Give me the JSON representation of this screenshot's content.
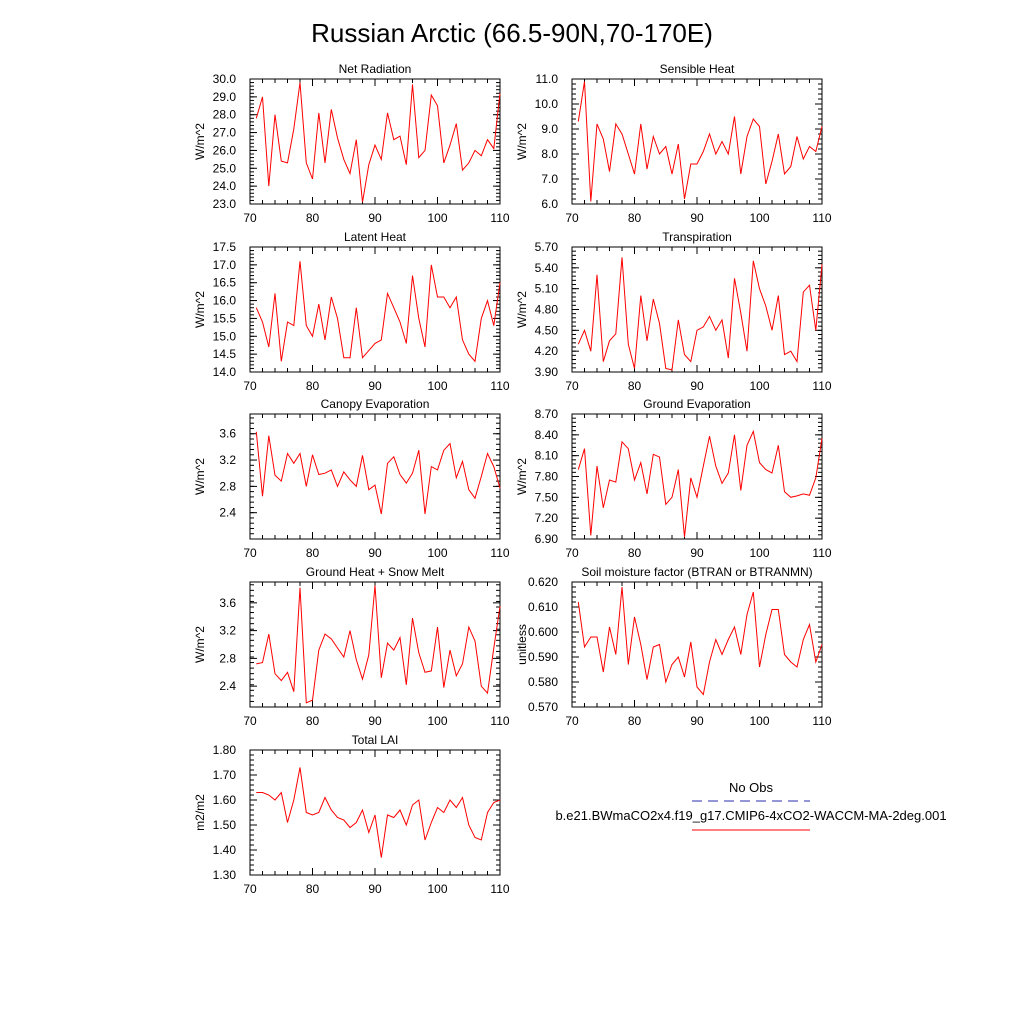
{
  "title": "Russian Arctic (66.5-90N,70-170E)",
  "colors": {
    "series": "#ff0000",
    "obs": "#2b2bb0",
    "axis": "#000000"
  },
  "legend": {
    "obs_label": "No Obs",
    "model_label": "b.e21.BWmaCO2x4.f19_g17.CMIP6-4xCO2-WACCM-MA-2deg.001"
  },
  "chart_data": [
    {
      "type": "line",
      "title": "Net Radiation",
      "ylabel": "W/m^2",
      "xlim": [
        70,
        110
      ],
      "ylim": [
        23.0,
        30.0
      ],
      "xticks": [
        70,
        80,
        90,
        100,
        110
      ],
      "xtick_labels": [
        "70",
        "80",
        "90",
        "100",
        "110"
      ],
      "yticks": [
        23,
        24,
        25,
        26,
        27,
        28,
        29,
        30
      ],
      "ytick_labels": [
        "23.0",
        "24.0",
        "25.0",
        "26.0",
        "27.0",
        "28.0",
        "29.0",
        "30.0"
      ],
      "series": [
        {
          "name": "b.e21.BWmaCO2x4.f19_g17.CMIP6-4xCO2-WACCM-MA-2deg.001",
          "x_start": 71,
          "values": [
            27.8,
            29.0,
            24.0,
            28.0,
            25.4,
            25.3,
            27.2,
            29.8,
            25.3,
            24.4,
            28.1,
            25.3,
            28.3,
            26.7,
            25.5,
            24.7,
            26.6,
            23.1,
            25.2,
            26.3,
            25.5,
            28.1,
            26.6,
            26.8,
            25.2,
            29.7,
            25.6,
            26.0,
            29.1,
            28.5,
            25.3,
            26.3,
            27.5,
            24.9,
            25.3,
            26.0,
            25.7,
            26.6,
            26.1,
            29.2
          ]
        }
      ]
    },
    {
      "type": "line",
      "title": "Sensible Heat",
      "ylabel": "W/m^2",
      "xlim": [
        70,
        110
      ],
      "ylim": [
        6.0,
        11.0
      ],
      "xticks": [
        70,
        80,
        90,
        100,
        110
      ],
      "xtick_labels": [
        "70",
        "80",
        "90",
        "100",
        "110"
      ],
      "yticks": [
        6,
        7,
        8,
        9,
        10,
        11
      ],
      "ytick_labels": [
        "6.0",
        "7.0",
        "8.0",
        "9.0",
        "10.0",
        "11.0"
      ],
      "series": [
        {
          "name": "b.e21.BWmaCO2x4.f19_g17.CMIP6-4xCO2-WACCM-MA-2deg.001",
          "x_start": 71,
          "values": [
            9.3,
            10.9,
            6.1,
            9.2,
            8.6,
            7.3,
            9.2,
            8.8,
            8.0,
            7.2,
            9.2,
            7.4,
            8.7,
            8.0,
            8.3,
            7.2,
            8.4,
            6.2,
            7.6,
            7.6,
            8.1,
            8.8,
            8.0,
            8.5,
            8.0,
            9.5,
            7.2,
            8.7,
            9.4,
            9.1,
            6.8,
            7.7,
            8.8,
            7.2,
            7.5,
            8.7,
            7.8,
            8.3,
            8.1,
            9.1
          ]
        }
      ]
    },
    {
      "type": "line",
      "title": "Latent Heat",
      "ylabel": "W/m^2",
      "xlim": [
        70,
        110
      ],
      "ylim": [
        14.0,
        17.5
      ],
      "xticks": [
        70,
        80,
        90,
        100,
        110
      ],
      "xtick_labels": [
        "70",
        "80",
        "90",
        "100",
        "110"
      ],
      "yticks": [
        14.0,
        14.5,
        15.0,
        15.5,
        16.0,
        16.5,
        17.0,
        17.5
      ],
      "ytick_labels": [
        "14.0",
        "14.5",
        "15.0",
        "15.5",
        "16.0",
        "16.5",
        "17.0",
        "17.5"
      ],
      "series": [
        {
          "name": "b.e21.BWmaCO2x4.f19_g17.CMIP6-4xCO2-WACCM-MA-2deg.001",
          "x_start": 71,
          "values": [
            15.8,
            15.4,
            14.7,
            16.2,
            14.3,
            15.4,
            15.3,
            17.1,
            15.3,
            15.0,
            15.9,
            14.9,
            16.1,
            15.5,
            14.4,
            14.4,
            15.8,
            14.4,
            14.6,
            14.8,
            14.9,
            16.2,
            15.8,
            15.4,
            14.8,
            16.7,
            15.5,
            14.7,
            17.0,
            16.1,
            16.1,
            15.8,
            16.1,
            14.9,
            14.5,
            14.3,
            15.5,
            16.0,
            15.3,
            16.5
          ]
        }
      ]
    },
    {
      "type": "line",
      "title": "Transpiration",
      "ylabel": "W/m^2",
      "xlim": [
        70,
        110
      ],
      "ylim": [
        3.9,
        5.7
      ],
      "xticks": [
        70,
        80,
        90,
        100,
        110
      ],
      "xtick_labels": [
        "70",
        "80",
        "90",
        "100",
        "110"
      ],
      "yticks": [
        3.9,
        4.2,
        4.5,
        4.8,
        5.1,
        5.4,
        5.7
      ],
      "ytick_labels": [
        "3.90",
        "4.20",
        "4.50",
        "4.80",
        "5.10",
        "5.40",
        "5.70"
      ],
      "series": [
        {
          "name": "b.e21.BWmaCO2x4.f19_g17.CMIP6-4xCO2-WACCM-MA-2deg.001",
          "x_start": 71,
          "values": [
            4.3,
            4.5,
            4.2,
            5.3,
            4.05,
            4.35,
            4.45,
            5.55,
            4.3,
            3.95,
            5.0,
            4.35,
            4.95,
            4.6,
            3.95,
            3.93,
            4.65,
            4.15,
            4.05,
            4.5,
            4.55,
            4.7,
            4.5,
            4.65,
            4.1,
            5.25,
            4.75,
            4.2,
            5.5,
            5.1,
            4.85,
            4.5,
            5.0,
            4.15,
            4.2,
            4.05,
            5.05,
            5.15,
            4.5,
            5.45
          ]
        }
      ]
    },
    {
      "type": "line",
      "title": "Canopy Evaporation",
      "ylabel": "W/m^2",
      "xlim": [
        70,
        110
      ],
      "ylim": [
        2.0,
        3.9
      ],
      "xticks": [
        70,
        80,
        90,
        100,
        110
      ],
      "xtick_labels": [
        "70",
        "80",
        "90",
        "100",
        "110"
      ],
      "yticks": [
        2.4,
        2.8,
        3.2,
        3.6
      ],
      "ytick_labels": [
        "2.4",
        "2.8",
        "3.2",
        "3.6"
      ],
      "series": [
        {
          "name": "b.e21.BWmaCO2x4.f19_g17.CMIP6-4xCO2-WACCM-MA-2deg.001",
          "x_start": 71,
          "values": [
            3.63,
            2.65,
            3.57,
            2.97,
            2.88,
            3.3,
            3.15,
            3.3,
            2.8,
            3.28,
            2.98,
            3.0,
            3.05,
            2.8,
            3.02,
            2.9,
            2.8,
            3.27,
            2.75,
            2.82,
            2.38,
            3.15,
            3.25,
            2.98,
            2.85,
            3.0,
            3.35,
            2.38,
            3.1,
            3.05,
            3.35,
            3.45,
            2.93,
            3.18,
            2.75,
            2.62,
            2.95,
            3.3,
            3.1,
            2.77
          ]
        }
      ]
    },
    {
      "type": "line",
      "title": "Ground Evaporation",
      "ylabel": "W/m^2",
      "xlim": [
        70,
        110
      ],
      "ylim": [
        6.9,
        8.7
      ],
      "xticks": [
        70,
        80,
        90,
        100,
        110
      ],
      "xtick_labels": [
        "70",
        "80",
        "90",
        "100",
        "110"
      ],
      "yticks": [
        6.9,
        7.2,
        7.5,
        7.8,
        8.1,
        8.4,
        8.7
      ],
      "ytick_labels": [
        "6.90",
        "7.20",
        "7.50",
        "7.80",
        "8.10",
        "8.40",
        "8.70"
      ],
      "series": [
        {
          "name": "b.e21.BWmaCO2x4.f19_g17.CMIP6-4xCO2-WACCM-MA-2deg.001",
          "x_start": 71,
          "values": [
            7.9,
            8.2,
            6.95,
            7.95,
            7.35,
            7.75,
            7.72,
            8.3,
            8.2,
            7.75,
            8.0,
            7.55,
            8.12,
            8.08,
            7.4,
            7.5,
            7.9,
            6.93,
            7.78,
            7.5,
            7.95,
            8.38,
            7.95,
            7.7,
            7.85,
            8.4,
            7.6,
            8.25,
            8.45,
            8.0,
            7.9,
            7.85,
            8.25,
            7.58,
            7.5,
            7.52,
            7.55,
            7.53,
            7.78,
            8.35
          ]
        }
      ]
    },
    {
      "type": "line",
      "title": "Ground Heat + Snow Melt",
      "ylabel": "W/m^2",
      "xlim": [
        70,
        110
      ],
      "ylim": [
        2.1,
        3.9
      ],
      "xticks": [
        70,
        80,
        90,
        100,
        110
      ],
      "xtick_labels": [
        "70",
        "80",
        "90",
        "100",
        "110"
      ],
      "yticks": [
        2.4,
        2.8,
        3.2,
        3.6
      ],
      "ytick_labels": [
        "2.4",
        "2.8",
        "3.2",
        "3.6"
      ],
      "series": [
        {
          "name": "b.e21.BWmaCO2x4.f19_g17.CMIP6-4xCO2-WACCM-MA-2deg.001",
          "x_start": 71,
          "values": [
            2.72,
            2.74,
            3.15,
            2.58,
            2.48,
            2.6,
            2.32,
            3.82,
            2.16,
            2.2,
            2.92,
            3.15,
            3.08,
            2.95,
            2.82,
            3.2,
            2.78,
            2.5,
            2.85,
            3.85,
            2.52,
            3.02,
            2.92,
            3.1,
            2.42,
            3.38,
            2.88,
            2.6,
            2.62,
            3.25,
            2.38,
            2.92,
            2.55,
            2.72,
            3.25,
            3.05,
            2.4,
            2.3,
            2.95,
            3.55
          ]
        }
      ]
    },
    {
      "type": "line",
      "title": "Soil moisture factor (BTRAN or BTRANMN)",
      "ylabel": "unitless",
      "xlim": [
        70,
        110
      ],
      "ylim": [
        0.57,
        0.62
      ],
      "xticks": [
        70,
        80,
        90,
        100,
        110
      ],
      "xtick_labels": [
        "70",
        "80",
        "90",
        "100",
        "110"
      ],
      "yticks": [
        0.57,
        0.58,
        0.59,
        0.6,
        0.61,
        0.62
      ],
      "ytick_labels": [
        "0.570",
        "0.580",
        "0.590",
        "0.600",
        "0.610",
        "0.620"
      ],
      "series": [
        {
          "name": "b.e21.BWmaCO2x4.f19_g17.CMIP6-4xCO2-WACCM-MA-2deg.001",
          "x_start": 71,
          "values": [
            0.612,
            0.594,
            0.598,
            0.598,
            0.584,
            0.602,
            0.591,
            0.618,
            0.587,
            0.606,
            0.595,
            0.581,
            0.594,
            0.595,
            0.58,
            0.587,
            0.59,
            0.582,
            0.596,
            0.578,
            0.575,
            0.588,
            0.597,
            0.591,
            0.597,
            0.602,
            0.591,
            0.607,
            0.616,
            0.586,
            0.599,
            0.609,
            0.609,
            0.591,
            0.588,
            0.586,
            0.597,
            0.603,
            0.588,
            0.595
          ]
        }
      ]
    },
    {
      "type": "line",
      "title": "Total LAI",
      "ylabel": "m2/m2",
      "xlim": [
        70,
        110
      ],
      "ylim": [
        1.3,
        1.8
      ],
      "xticks": [
        70,
        80,
        90,
        100,
        110
      ],
      "xtick_labels": [
        "70",
        "80",
        "90",
        "100",
        "110"
      ],
      "yticks": [
        1.3,
        1.4,
        1.5,
        1.6,
        1.7,
        1.8
      ],
      "ytick_labels": [
        "1.30",
        "1.40",
        "1.50",
        "1.60",
        "1.70",
        "1.80"
      ],
      "series": [
        {
          "name": "b.e21.BWmaCO2x4.f19_g17.CMIP6-4xCO2-WACCM-MA-2deg.001",
          "x_start": 71,
          "values": [
            1.63,
            1.63,
            1.62,
            1.6,
            1.63,
            1.51,
            1.6,
            1.73,
            1.55,
            1.54,
            1.55,
            1.61,
            1.56,
            1.53,
            1.52,
            1.49,
            1.51,
            1.56,
            1.47,
            1.54,
            1.37,
            1.54,
            1.53,
            1.56,
            1.5,
            1.58,
            1.6,
            1.44,
            1.51,
            1.57,
            1.55,
            1.6,
            1.57,
            1.61,
            1.5,
            1.45,
            1.44,
            1.55,
            1.59,
            1.6
          ]
        }
      ]
    }
  ]
}
